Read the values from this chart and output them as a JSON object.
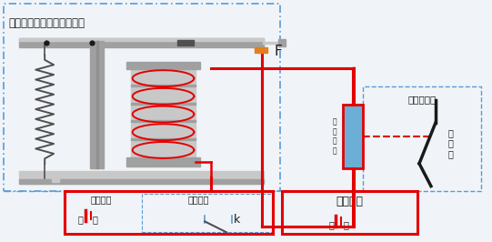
{
  "bg_color": "#f0f4f8",
  "title_text": "中间继电器（出口继电器）",
  "label_F": "F",
  "label_k": "k",
  "label_baohu_loop": "保护回路",
  "label_baohu_device": "保护装置",
  "label_control_loop": "控制回路",
  "label_breaker_mech": "断路器机构",
  "label_breaker": "断\n路\n器",
  "label_fenlv": "分\n闸\n线\n圈"
}
